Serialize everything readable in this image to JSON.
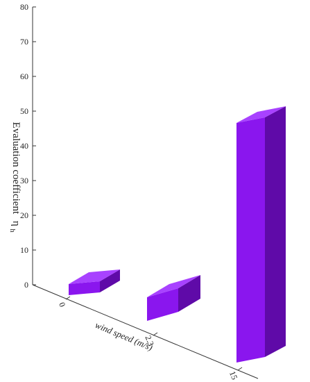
{
  "chart_data": {
    "type": "bar",
    "subtype": "3d",
    "categories": [
      "0",
      "2.3",
      "15"
    ],
    "values": [
      2,
      4,
      69
    ],
    "ylim": [
      0,
      80
    ],
    "yticks": [
      "0",
      "10",
      "20",
      "30",
      "40",
      "50",
      "60",
      "70",
      "80"
    ],
    "ylabel": "Evaluation coefficient",
    "ylabel_symbol": "η",
    "ylabel_subscript": "h",
    "xlabel": "wind speed (m/s)",
    "grid": false,
    "colors": {
      "front": "#8a16ee",
      "top": "#a842ff",
      "side": "#5f0aa8",
      "axis": "#333333"
    }
  }
}
